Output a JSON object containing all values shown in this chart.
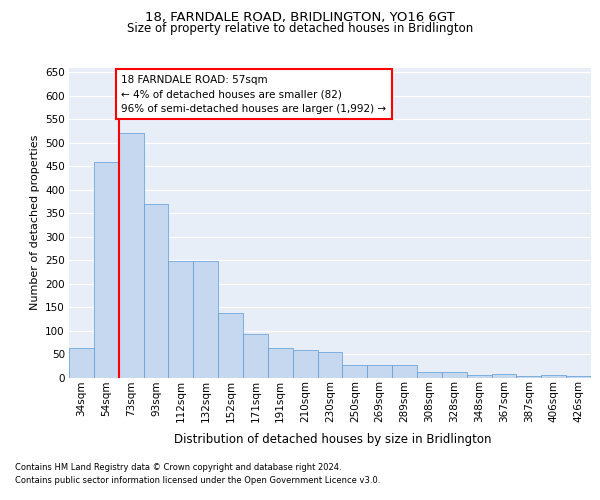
{
  "title": "18, FARNDALE ROAD, BRIDLINGTON, YO16 6GT",
  "subtitle": "Size of property relative to detached houses in Bridlington",
  "xlabel": "Distribution of detached houses by size in Bridlington",
  "ylabel": "Number of detached properties",
  "categories": [
    "34sqm",
    "54sqm",
    "73sqm",
    "93sqm",
    "112sqm",
    "132sqm",
    "152sqm",
    "171sqm",
    "191sqm",
    "210sqm",
    "230sqm",
    "250sqm",
    "269sqm",
    "289sqm",
    "308sqm",
    "328sqm",
    "348sqm",
    "367sqm",
    "387sqm",
    "406sqm",
    "426sqm"
  ],
  "values": [
    62,
    458,
    520,
    370,
    247,
    247,
    138,
    93,
    62,
    58,
    55,
    27,
    27,
    27,
    11,
    12,
    6,
    8,
    4,
    5,
    4
  ],
  "bar_color": "#c5d8f0",
  "bar_edge_color": "#5b9bd5",
  "annotation_text_line1": "18 FARNDALE ROAD: 57sqm",
  "annotation_text_line2": "← 4% of detached houses are smaller (82)",
  "annotation_text_line3": "96% of semi-detached houses are larger (1,992) →",
  "red_line_x": 1.5,
  "ylim": [
    0,
    660
  ],
  "yticks": [
    0,
    50,
    100,
    150,
    200,
    250,
    300,
    350,
    400,
    450,
    500,
    550,
    600,
    650
  ],
  "footnote_line1": "Contains HM Land Registry data © Crown copyright and database right 2024.",
  "footnote_line2": "Contains public sector information licensed under the Open Government Licence v3.0.",
  "bg_color": "#e8eef8",
  "title_fontsize": 9.5,
  "subtitle_fontsize": 8.5,
  "ylabel_fontsize": 8,
  "xlabel_fontsize": 8.5,
  "tick_fontsize": 7.5,
  "annot_fontsize": 7.5,
  "footnote_fontsize": 6.0
}
